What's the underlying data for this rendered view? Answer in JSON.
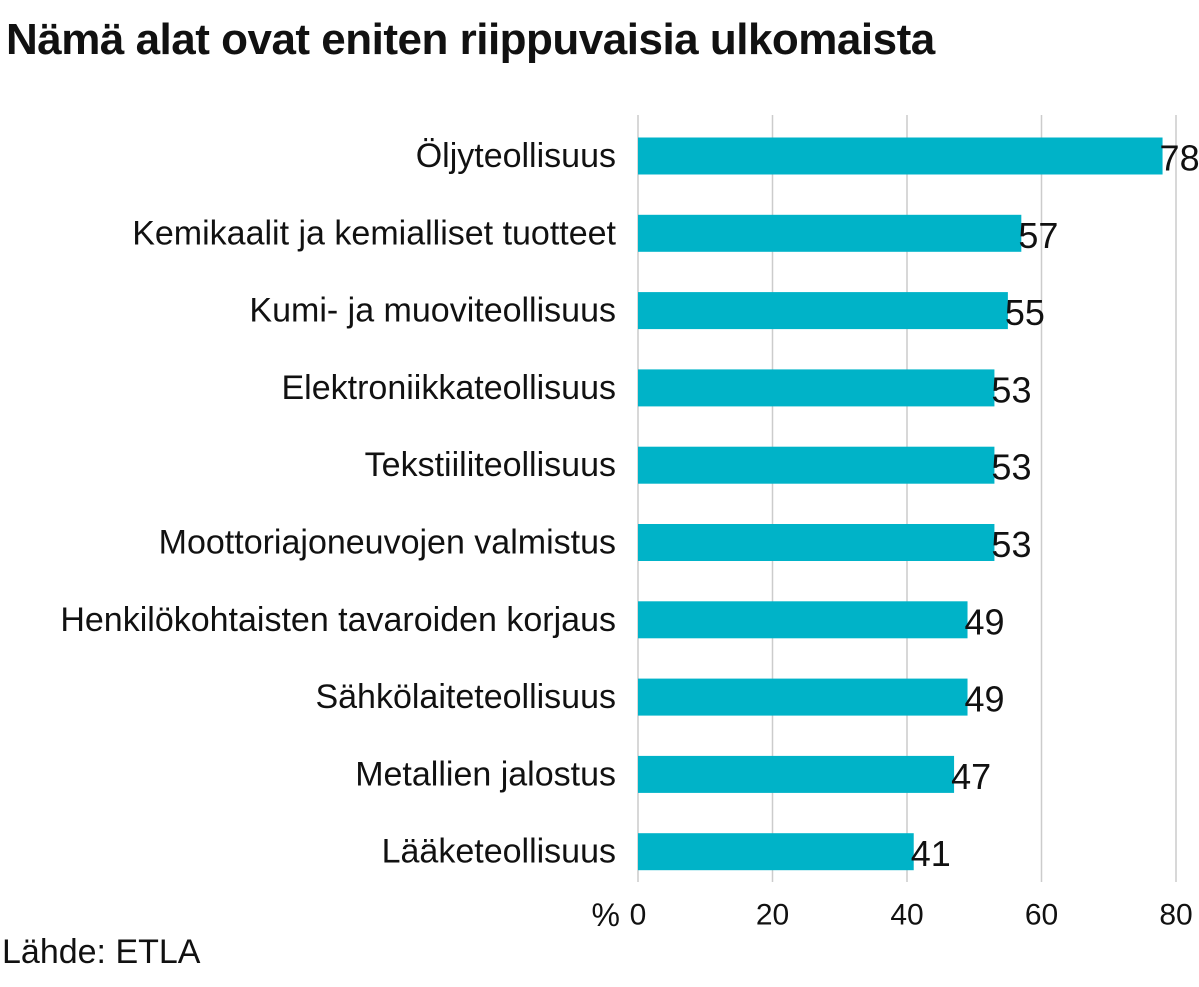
{
  "title": "Nämä alat ovat eniten riippuvaisia ulkomaista",
  "source": "Lähde: ETLA",
  "chart_data": {
    "type": "bar",
    "orientation": "horizontal",
    "categories": [
      "Öljyteollisuus",
      "Kemikaalit ja kemialliset tuotteet",
      "Kumi- ja muoviteollisuus",
      "Elektroniikkateollisuus",
      "Tekstiiliteollisuus",
      "Moottoriajoneuvojen valmistus",
      "Henkilökohtaisten tavaroiden korjaus",
      "Sähkölaiteteollisuus",
      "Metallien jalostus",
      "Lääketeollisuus"
    ],
    "values": [
      78,
      57,
      55,
      53,
      53,
      53,
      49,
      49,
      47,
      41
    ],
    "data_labels": [
      "78",
      "57",
      "55",
      "53",
      "53",
      "53",
      "49",
      "49",
      "47",
      "41"
    ],
    "xlabel": "%",
    "ylabel": "",
    "xlim": [
      0,
      80
    ],
    "xticks": [
      0,
      20,
      40,
      60,
      80
    ],
    "grid": "vertical",
    "bar_color": "#00b3c8",
    "grid_color": "#cccccc"
  }
}
